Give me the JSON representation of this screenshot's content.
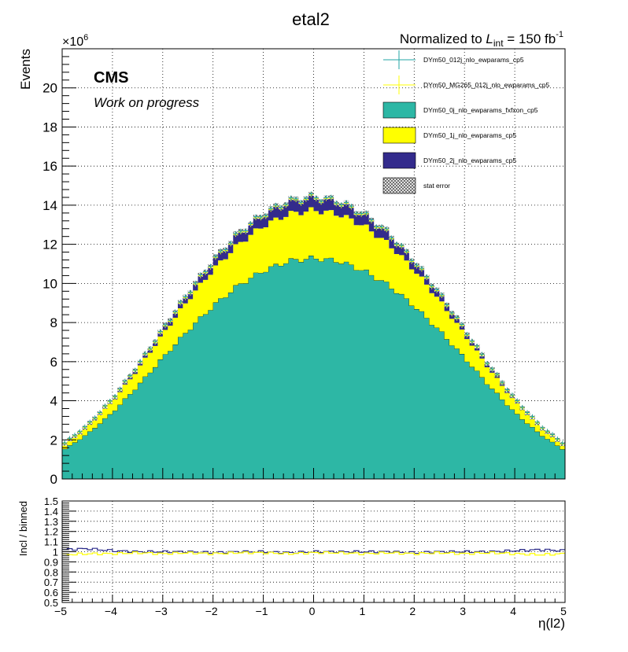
{
  "header": {
    "title": "etal2",
    "lumi_prefix": "Normalized to ",
    "lumi_symbol": "L",
    "lumi_sub": "int",
    "lumi_value": " = 150 fb",
    "lumi_sup": "-1",
    "exponent_base": "×10",
    "exponent_power": "6",
    "cms_label": "CMS",
    "cms_sub": "Work on progress"
  },
  "colors": {
    "teal": "#2db7a5",
    "yellow": "#ffff00",
    "navy": "#332b8c",
    "marker_teal": "#22a5a5",
    "marker_yellow": "#ffff00",
    "ratio_navy": "#2a2a8a",
    "ratio_yellow": "#ffff00"
  },
  "legend": [
    {
      "label": "DYm50_012j_nlo_ewparams_cp5",
      "kind": "marker",
      "color": "#22a5a5"
    },
    {
      "label": "DYm50_MG265_012j_nlo_ewparams_cp5",
      "kind": "marker",
      "color": "#ffff00"
    },
    {
      "label": "DYm50_0j_nlo_ewparams_fxfxon_cp5",
      "kind": "box",
      "color": "#2db7a5"
    },
    {
      "label": "DYm50_1j_nlo_ewparams_cp5",
      "kind": "box",
      "color": "#ffff00"
    },
    {
      "label": "DYm50_2j_nlo_ewparams_cp5",
      "kind": "box",
      "color": "#332b8c"
    },
    {
      "label": "stat error",
      "kind": "hatch",
      "color": "#555555"
    }
  ],
  "chart_data": [
    {
      "type": "area",
      "stacked": true,
      "xlim": [
        -5,
        5
      ],
      "ylim": [
        0,
        22
      ],
      "y_unit": "×10^6",
      "ylabel": "Events",
      "xlabel": "",
      "grid": true,
      "legend_position": "top-right",
      "x_ticks": [
        "−5",
        "−4",
        "−3",
        "−2",
        "−1",
        "0",
        "1",
        "2",
        "3",
        "4",
        "5"
      ],
      "y_ticks": [
        "0",
        "2",
        "4",
        "6",
        "8",
        "10",
        "12",
        "14",
        "16",
        "18",
        "20"
      ],
      "x": [
        -5.0,
        -4.5,
        -4.0,
        -3.5,
        -3.0,
        -2.5,
        -2.0,
        -1.5,
        -1.0,
        -0.5,
        0.0,
        0.5,
        1.0,
        1.5,
        2.0,
        2.5,
        3.0,
        3.5,
        4.0,
        4.5,
        5.0
      ],
      "series": [
        {
          "name": "DYm50_0j_nlo_ewparams_fxfxon_cp5",
          "values": [
            1.45,
            2.3,
            3.4,
            4.75,
            6.2,
            7.6,
            8.85,
            9.9,
            10.65,
            11.15,
            11.3,
            11.15,
            10.65,
            9.9,
            8.85,
            7.6,
            6.2,
            4.75,
            3.4,
            2.3,
            1.45
          ]
        },
        {
          "name": "DYm50_1j_nlo_ewparams_cp5",
          "values": [
            0.2,
            0.32,
            0.55,
            0.85,
            1.2,
            1.55,
            1.85,
            2.1,
            2.3,
            2.4,
            2.45,
            2.4,
            2.3,
            2.1,
            1.85,
            1.55,
            1.2,
            0.85,
            0.55,
            0.32,
            0.2
          ]
        },
        {
          "name": "DYm50_2j_nlo_ewparams_cp5",
          "values": [
            0.05,
            0.08,
            0.12,
            0.18,
            0.25,
            0.35,
            0.45,
            0.55,
            0.6,
            0.65,
            0.68,
            0.65,
            0.6,
            0.55,
            0.45,
            0.35,
            0.25,
            0.18,
            0.12,
            0.08,
            0.05
          ]
        },
        {
          "name": "DYm50_012j_nlo_ewparams_cp5",
          "kind": "points",
          "values": [
            1.75,
            2.75,
            4.1,
            5.8,
            7.65,
            9.5,
            11.15,
            12.55,
            13.55,
            14.2,
            14.43,
            14.2,
            13.55,
            12.55,
            11.15,
            9.5,
            7.65,
            5.8,
            4.1,
            2.75,
            1.75
          ]
        },
        {
          "name": "DYm50_MG265_012j_nlo_ewparams_cp5",
          "kind": "points",
          "values": [
            1.72,
            2.72,
            4.07,
            5.78,
            7.6,
            9.45,
            11.1,
            12.5,
            13.5,
            14.15,
            14.38,
            14.15,
            13.5,
            12.5,
            11.1,
            9.45,
            7.6,
            5.78,
            4.07,
            2.72,
            1.72
          ]
        }
      ]
    },
    {
      "type": "line",
      "xlim": [
        -5,
        5
      ],
      "ylim": [
        0.5,
        1.5
      ],
      "ylabel": "Incl / binned",
      "xlabel": "η(l2)",
      "grid": true,
      "x_ticks": [
        "−5",
        "−4",
        "−3",
        "−2",
        "−1",
        "0",
        "1",
        "2",
        "3",
        "4",
        "5"
      ],
      "y_ticks": [
        "0.5",
        "0.6",
        "0.7",
        "0.8",
        "0.9",
        "1",
        "1.1",
        "1.2",
        "1.3",
        "1.4",
        "1.5"
      ],
      "x": [
        -5.0,
        -4.5,
        -4.0,
        -3.5,
        -3.0,
        -2.5,
        -2.0,
        -1.5,
        -1.0,
        -0.5,
        0.0,
        0.5,
        1.0,
        1.5,
        2.0,
        2.5,
        3.0,
        3.5,
        4.0,
        4.5,
        5.0
      ],
      "series": [
        {
          "name": "DYm50_012j_nlo_ewparams_cp5",
          "values": [
            1.02,
            1.03,
            1.01,
            1.0,
            1.0,
            1.0,
            0.99,
            1.0,
            1.0,
            0.99,
            1.0,
            1.0,
            1.0,
            1.0,
            0.99,
            1.0,
            1.0,
            1.0,
            1.01,
            1.02,
            1.01
          ]
        },
        {
          "name": "DYm50_MG265_012j_nlo_ewparams_cp5",
          "values": [
            0.97,
            0.98,
            0.98,
            0.99,
            0.98,
            0.99,
            0.98,
            0.99,
            0.99,
            0.98,
            0.99,
            0.99,
            0.98,
            0.99,
            0.98,
            0.99,
            0.98,
            0.99,
            0.98,
            0.97,
            0.98
          ]
        }
      ]
    }
  ]
}
